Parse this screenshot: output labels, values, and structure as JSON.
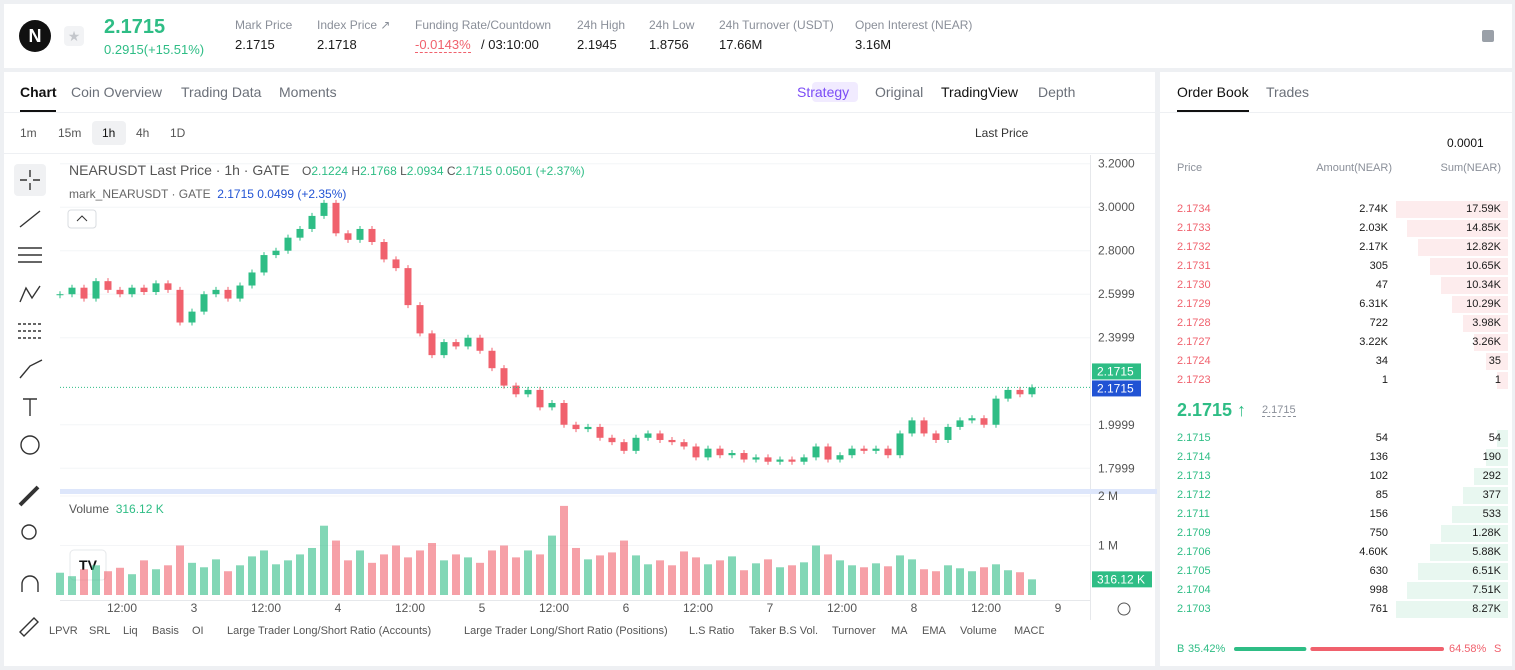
{
  "header": {
    "symbol_logo": "N",
    "price": "2.1715",
    "change": "0.2915(+15.51%)",
    "stats": [
      {
        "label": "Mark Price",
        "value": "2.1715"
      },
      {
        "label": "Index Price ↗",
        "value": "2.1718"
      },
      {
        "label": "Funding Rate/Countdown",
        "value": "-0.0143%",
        "extra": "/ 03:10:00"
      },
      {
        "label": "24h High",
        "value": "2.1945"
      },
      {
        "label": "24h Low",
        "value": "1.8756"
      },
      {
        "label": "24h Turnover (USDT)",
        "value": "17.66M"
      },
      {
        "label": "Open Interest (NEAR)",
        "value": "3.16M"
      }
    ]
  },
  "chart_tabs": [
    "Chart",
    "Coin Overview",
    "Trading Data",
    "Moments"
  ],
  "view_tabs": [
    "Strategy",
    "Original",
    "TradingView",
    "Depth"
  ],
  "timeframes": [
    "1m",
    "15m",
    "1h",
    "4h",
    "1D"
  ],
  "price_source": "Last Price",
  "legend": {
    "title": "NEARUSDT Last Price · 1h · GATE",
    "o_label": "O",
    "o": "2.1224",
    "h_label": "H",
    "h": "2.1768",
    "l_label": "L",
    "l": "2.0934",
    "c_label": "C",
    "c": "2.1715",
    "change": "0.0501 (+2.37%)",
    "mark_title": "mark_NEARUSDT · GATE",
    "mark_value": "2.1715",
    "mark_change": "0.0499",
    "mark_pct": "(+2.35%)"
  },
  "volume_legend": {
    "title": "Volume",
    "value": "316.12 K"
  },
  "chart": {
    "type": "candlestick",
    "closes": [
      2.6,
      2.63,
      2.58,
      2.66,
      2.62,
      2.6,
      2.63,
      2.61,
      2.65,
      2.62,
      2.47,
      2.52,
      2.6,
      2.62,
      2.58,
      2.64,
      2.7,
      2.78,
      2.8,
      2.86,
      2.9,
      2.96,
      3.02,
      2.88,
      2.85,
      2.9,
      2.84,
      2.76,
      2.72,
      2.55,
      2.42,
      2.32,
      2.38,
      2.36,
      2.4,
      2.34,
      2.26,
      2.18,
      2.14,
      2.16,
      2.08,
      2.1,
      2.0,
      1.98,
      1.99,
      1.94,
      1.92,
      1.88,
      1.94,
      1.96,
      1.93,
      1.92,
      1.9,
      1.85,
      1.89,
      1.86,
      1.87,
      1.84,
      1.85,
      1.83,
      1.84,
      1.83,
      1.85,
      1.9,
      1.84,
      1.86,
      1.89,
      1.88,
      1.89,
      1.86,
      1.96,
      2.02,
      1.96,
      1.93,
      1.99,
      2.02,
      2.03,
      2.0,
      2.12,
      2.16,
      2.14,
      2.1715
    ],
    "volumes": [
      450000,
      380000,
      520000,
      600000,
      480000,
      550000,
      420000,
      700000,
      520000,
      600000,
      1000000,
      650000,
      560000,
      720000,
      480000,
      600000,
      780000,
      900000,
      620000,
      700000,
      820000,
      950000,
      1400000,
      1100000,
      700000,
      900000,
      650000,
      820000,
      1000000,
      760000,
      900000,
      1050000,
      700000,
      820000,
      760000,
      650000,
      900000,
      1000000,
      760000,
      900000,
      820000,
      1200000,
      1800000,
      950000,
      720000,
      800000,
      860000,
      1100000,
      800000,
      620000,
      700000,
      600000,
      880000,
      760000,
      620000,
      700000,
      780000,
      500000,
      640000,
      720000,
      560000,
      600000,
      660000,
      1000000,
      820000,
      700000,
      600000,
      560000,
      640000,
      580000,
      800000,
      720000,
      520000,
      480000,
      600000,
      540000,
      480000,
      560000,
      620000,
      500000,
      460000,
      316120
    ],
    "up_color": "#2ebd85",
    "down_color": "#f0616d",
    "ylim": [
      1.7,
      3.24
    ],
    "yticks": [
      {
        "value": 3.2,
        "label": "3.2000"
      },
      {
        "value": 3.0,
        "label": "3.0000"
      },
      {
        "value": 2.8,
        "label": "2.8000"
      },
      2.5999,
      2.3999,
      1.9999,
      1.7999
    ],
    "vol_ylim": [
      0,
      2000000
    ],
    "vol_yticks": [
      {
        "value": 2000000,
        "label": "2 M"
      },
      {
        "value": 1000000,
        "label": "1 M"
      }
    ],
    "last_price": 2.1715,
    "mark_price": 2.1715,
    "volume_tag": "316.12 K",
    "x_labels": [
      "12:00",
      "3",
      "12:00",
      "4",
      "12:00",
      "5",
      "12:00",
      "6",
      "12:00",
      "7",
      "12:00",
      "8",
      "12:00",
      "9"
    ]
  },
  "indicators": [
    "LPVR",
    "SRL",
    "Liq",
    "Basis",
    "OI",
    "Large Trader Long/Short Ratio (Accounts)",
    "Large Trader Long/Short Ratio (Positions)",
    "L.S Ratio",
    "Taker B.S Vol.",
    "Turnover",
    "MA",
    "EMA",
    "Volume",
    "MACD"
  ],
  "order_book": {
    "tabs": [
      "Order Book",
      "Trades"
    ],
    "precision": "0.0001",
    "columns": [
      "Price",
      "Amount(NEAR)",
      "Sum(NEAR)"
    ],
    "asks": [
      [
        "2.1734",
        "2.74K",
        "17.59K"
      ],
      [
        "2.1733",
        "2.03K",
        "14.85K"
      ],
      [
        "2.1732",
        "2.17K",
        "12.82K"
      ],
      [
        "2.1731",
        "305",
        "10.65K"
      ],
      [
        "2.1730",
        "47",
        "10.34K"
      ],
      [
        "2.1729",
        "6.31K",
        "10.29K"
      ],
      [
        "2.1728",
        "722",
        "3.98K"
      ],
      [
        "2.1727",
        "3.22K",
        "3.26K"
      ],
      [
        "2.1724",
        "34",
        "35"
      ],
      [
        "2.1723",
        "1",
        "1"
      ]
    ],
    "mid_price": "2.1715 ↑",
    "mid_mark": "2.1715",
    "bids": [
      [
        "2.1715",
        "54",
        "54"
      ],
      [
        "2.1714",
        "136",
        "190"
      ],
      [
        "2.1713",
        "102",
        "292"
      ],
      [
        "2.1712",
        "85",
        "377"
      ],
      [
        "2.1711",
        "156",
        "533"
      ],
      [
        "2.1709",
        "750",
        "1.28K"
      ],
      [
        "2.1706",
        "4.60K",
        "5.88K"
      ],
      [
        "2.1705",
        "630",
        "6.51K"
      ],
      [
        "2.1704",
        "998",
        "7.51K"
      ],
      [
        "2.1703",
        "761",
        "8.27K"
      ]
    ],
    "ratio": {
      "buy_label": "B",
      "buy": {
        "value": 35.42,
        "label": "35.42%"
      },
      "sell": {
        "value": 64.58,
        "label": "64.58%"
      },
      "sell_label": "S"
    }
  }
}
